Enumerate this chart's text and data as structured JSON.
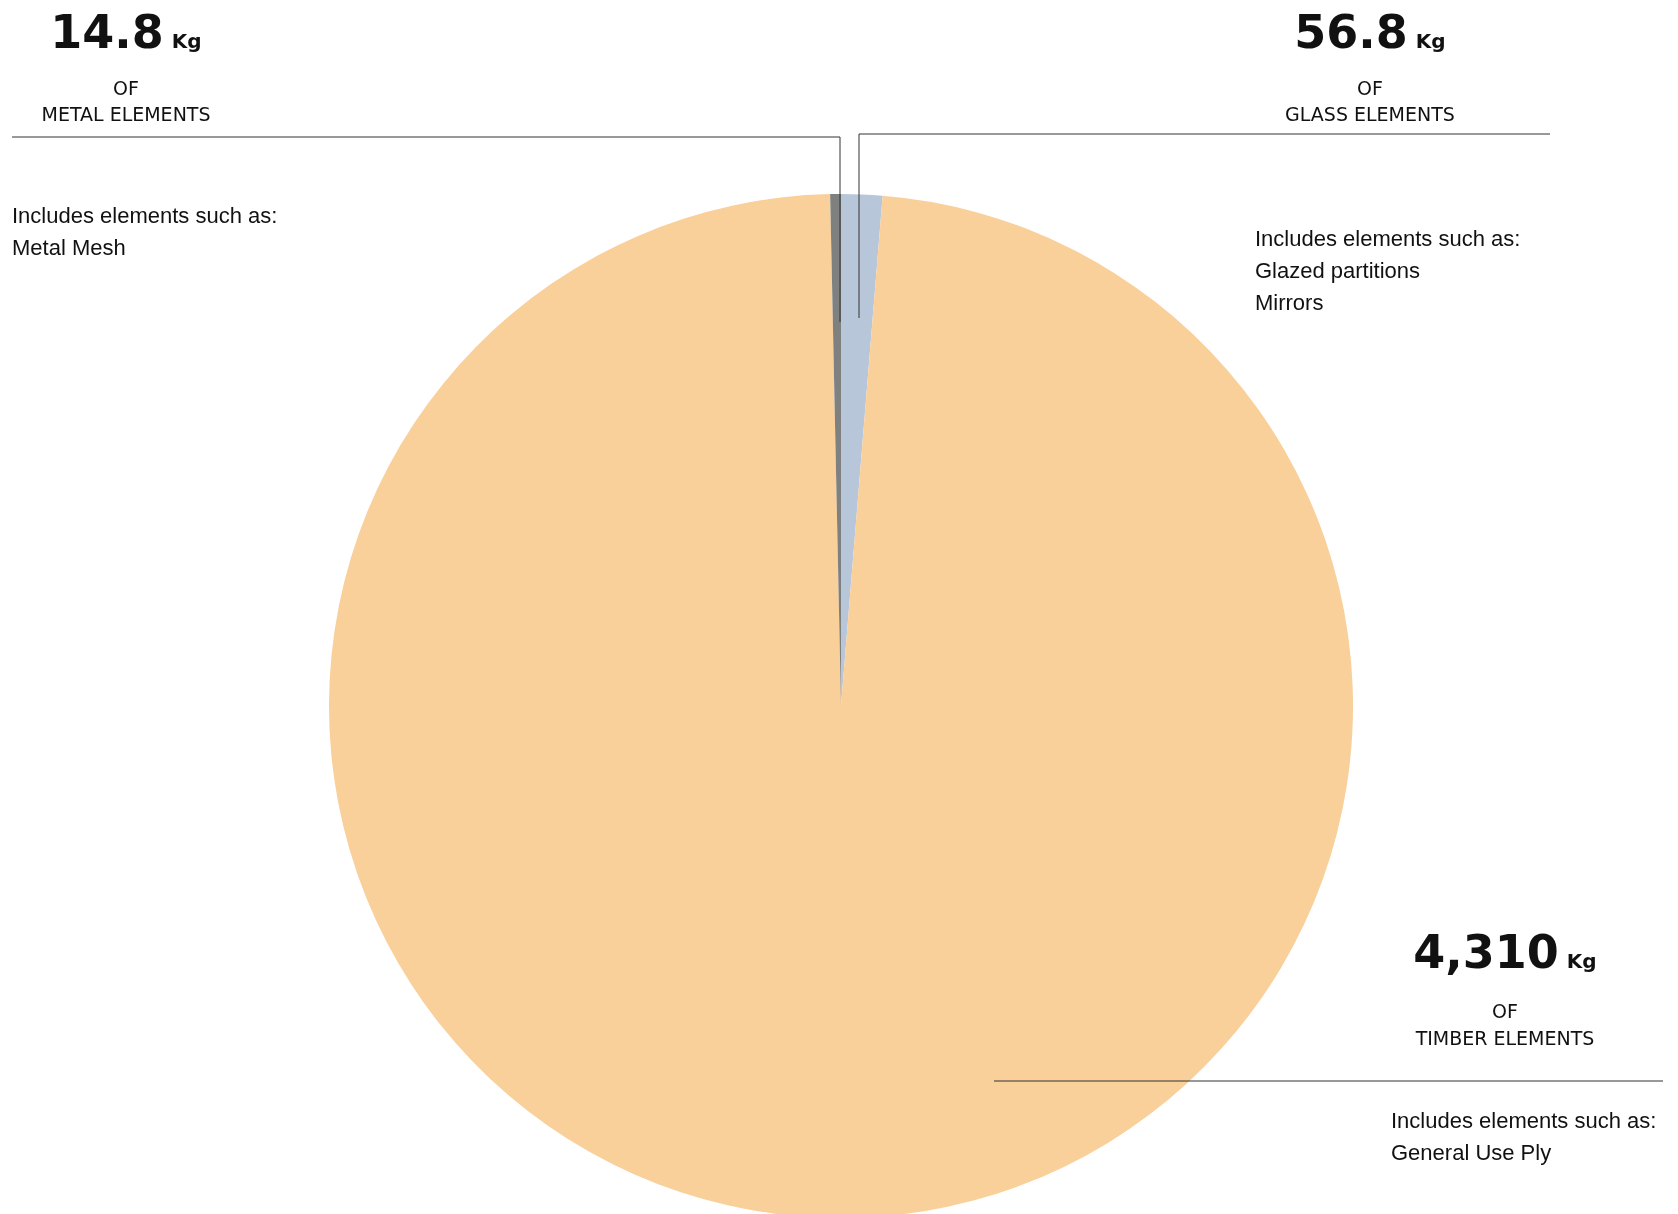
{
  "chart_data": {
    "type": "pie",
    "categories": [
      "GLASS ELEMENTS",
      "TIMBER ELEMENTS",
      "METAL ELEMENTS"
    ],
    "values": [
      56.8,
      4310,
      14.8
    ],
    "colors": [
      "#b8c6d9",
      "#f9cf9a",
      "#7f8080"
    ],
    "value_labels": [
      "56.8",
      "4,310",
      "14.8"
    ],
    "legend": false,
    "annotations": [
      "Kg",
      "OF",
      "Includes elements such as:\nGlazed partitions\nMirrors",
      "Kg",
      "OF",
      "Includes elements such as:\nGeneral Use Ply",
      "Kg",
      "OF",
      "Includes elements such as:\nMetal Mesh"
    ]
  }
}
